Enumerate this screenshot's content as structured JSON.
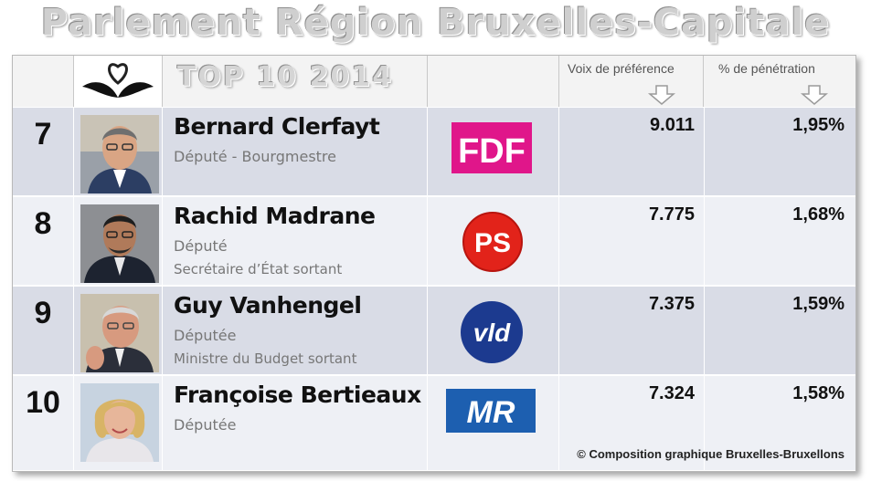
{
  "title": "Parlement Région Bruxelles-Capitale",
  "header": {
    "top_label": "TOP 10 2014",
    "col_votes": "Voix de préférence",
    "col_pct": "% de pénétration",
    "logo_icon": "heart-leaves-logo-icon",
    "arrow_icon": "down-arrow-icon"
  },
  "rows": [
    {
      "rank": "7",
      "name": "Bernard Clerfayt",
      "role1": "Député - Bourgmestre",
      "role2": "",
      "party": "FDF",
      "votes": "9.011",
      "pct": "1,95%"
    },
    {
      "rank": "8",
      "name": "Rachid Madrane",
      "role1": "Député",
      "role2": "Secrétaire d’État sortant",
      "party": "PS",
      "votes": "7.775",
      "pct": "1,68%"
    },
    {
      "rank": "9",
      "name": "Guy Vanhengel",
      "role1": "Députée",
      "role2": "Ministre du Budget sortant",
      "party": "vld",
      "votes": "7.375",
      "pct": "1,59%"
    },
    {
      "rank": "10",
      "name": "Françoise Bertieaux",
      "role1": "Députée",
      "role2": "",
      "party": "MR",
      "votes": "7.324",
      "pct": "1,58%"
    }
  ],
  "credit": "© Composition graphique Bruxelles-Bruxellons",
  "colors": {
    "row_dark": "#d9dce6",
    "row_light": "#eef0f5",
    "fdf": "#e0168a",
    "ps": "#e2231a",
    "vld": "#1c3a8f",
    "mr": "#1d5fb0"
  }
}
